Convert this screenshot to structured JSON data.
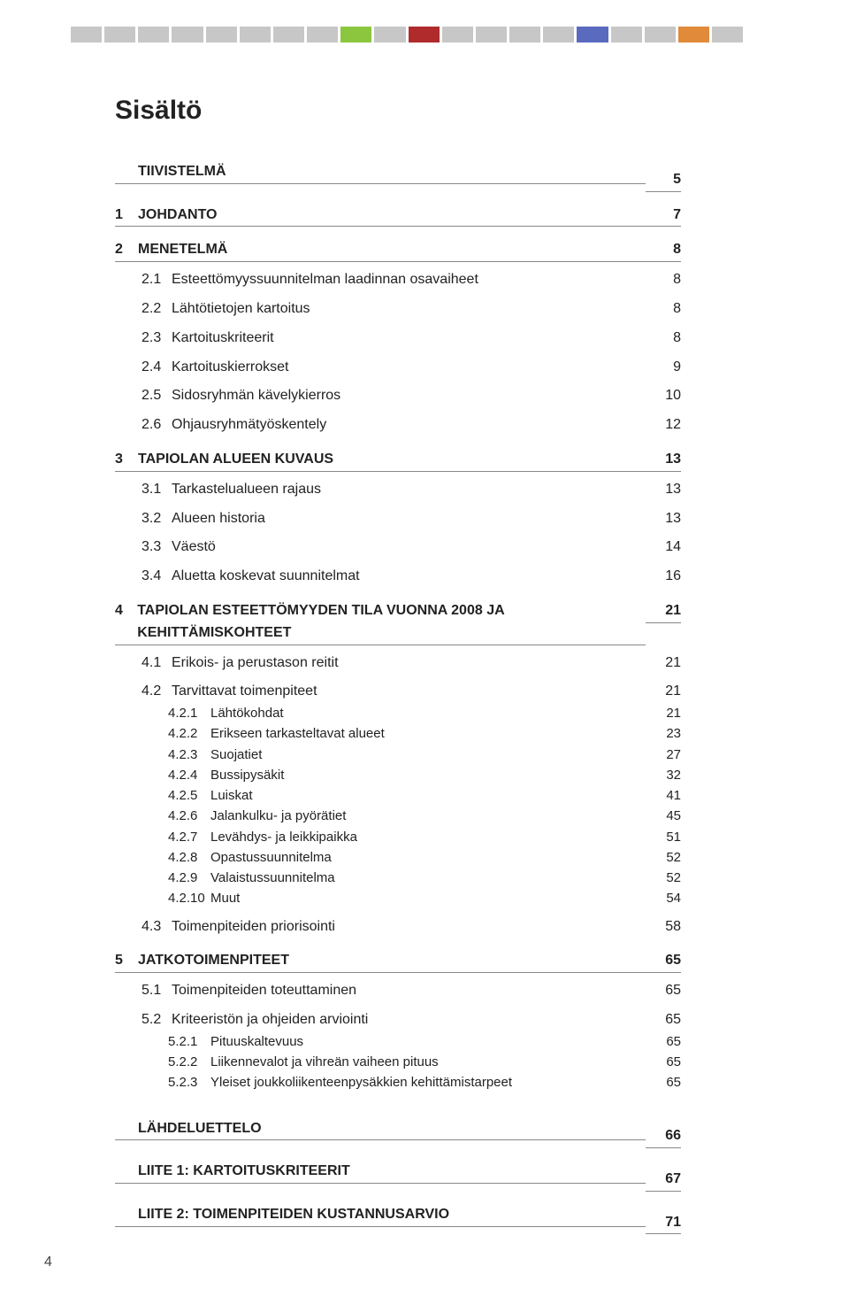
{
  "colorbar": [
    "#c7c7c7",
    "#c7c7c7",
    "#c7c7c7",
    "#c7c7c7",
    "#c7c7c7",
    "#c7c7c7",
    "#c7c7c7",
    "#c7c7c7",
    "#8cc63f",
    "#c7c7c7",
    "#b02b2b",
    "#c7c7c7",
    "#c7c7c7",
    "#c7c7c7",
    "#c7c7c7",
    "#5a6bbf",
    "#c7c7c7",
    "#c7c7c7",
    "#e08a3a",
    "#c7c7c7"
  ],
  "title": "Sisältö",
  "toc": [
    {
      "level": 0,
      "num": "",
      "label": "TIIVISTELMÄ",
      "page": "5"
    },
    {
      "level": 0,
      "num": "1",
      "label": "JOHDANTO",
      "page": "7"
    },
    {
      "level": 0,
      "num": "2",
      "label": "MENETELMÄ",
      "page": "8"
    },
    {
      "level": 1,
      "num": "2.1",
      "label": "Esteettömyyssuunnitelman laadinnan osavaiheet",
      "page": "8"
    },
    {
      "level": 1,
      "num": "2.2",
      "label": "Lähtötietojen kartoitus",
      "page": "8"
    },
    {
      "level": 1,
      "num": "2.3",
      "label": "Kartoituskriteerit",
      "page": "8"
    },
    {
      "level": 1,
      "num": "2.4",
      "label": "Kartoituskierrokset",
      "page": "9"
    },
    {
      "level": 1,
      "num": "2.5",
      "label": "Sidosryhmän kävelykierros",
      "page": "10"
    },
    {
      "level": 1,
      "num": "2.6",
      "label": "Ohjausryhmätyöskentely",
      "page": "12"
    },
    {
      "level": 0,
      "num": "3",
      "label": "TAPIOLAN ALUEEN KUVAUS",
      "page": "13"
    },
    {
      "level": 1,
      "num": "3.1",
      "label": "Tarkastelualueen rajaus",
      "page": "13"
    },
    {
      "level": 1,
      "num": "3.2",
      "label": "Alueen historia",
      "page": "13"
    },
    {
      "level": 1,
      "num": "3.3",
      "label": "Väestö",
      "page": "14"
    },
    {
      "level": 1,
      "num": "3.4",
      "label": "Aluetta koskevat suunnitelmat",
      "page": "16"
    },
    {
      "level": 0,
      "num": "4",
      "label": "TAPIOLAN ESTEETTÖMYYDEN TILA VUONNA 2008 JA KEHITTÄMISKOHTEET",
      "page": "21"
    },
    {
      "level": 1,
      "num": "4.1",
      "label": "Erikois- ja perustason reitit",
      "page": "21"
    },
    {
      "level": 1,
      "num": "4.2",
      "label": "Tarvittavat toimenpiteet",
      "page": "21"
    },
    {
      "level": 2,
      "num": "4.2.1",
      "label": "Lähtökohdat",
      "page": "21"
    },
    {
      "level": 2,
      "num": "4.2.2",
      "label": "Erikseen tarkasteltavat alueet",
      "page": "23"
    },
    {
      "level": 2,
      "num": "4.2.3",
      "label": "Suojatiet",
      "page": "27"
    },
    {
      "level": 2,
      "num": "4.2.4",
      "label": "Bussipysäkit",
      "page": "32"
    },
    {
      "level": 2,
      "num": "4.2.5",
      "label": "Luiskat",
      "page": "41"
    },
    {
      "level": 2,
      "num": "4.2.6",
      "label": "Jalankulku- ja pyörätiet",
      "page": "45"
    },
    {
      "level": 2,
      "num": "4.2.7",
      "label": "Levähdys- ja leikkipaikka",
      "page": "51"
    },
    {
      "level": 2,
      "num": "4.2.8",
      "label": "Opastussuunnitelma",
      "page": "52"
    },
    {
      "level": 2,
      "num": "4.2.9",
      "label": "Valaistussuunnitelma",
      "page": "52"
    },
    {
      "level": 2,
      "num": "4.2.10",
      "label": "Muut",
      "page": "54"
    },
    {
      "level": 1,
      "num": "4.3",
      "label": "Toimenpiteiden priorisointi",
      "page": "58"
    },
    {
      "level": 0,
      "num": "5",
      "label": "JATKOTOIMENPITEET",
      "page": "65"
    },
    {
      "level": 1,
      "num": "5.1",
      "label": "Toimenpiteiden toteuttaminen",
      "page": "65"
    },
    {
      "level": 1,
      "num": "5.2",
      "label": "Kriteeristön ja ohjeiden arviointi",
      "page": "65"
    },
    {
      "level": 2,
      "num": "5.2.1",
      "label": "Pituuskaltevuus",
      "page": "65"
    },
    {
      "level": 2,
      "num": "5.2.2",
      "label": "Liikennevalot ja vihreän vaiheen pituus",
      "page": "65"
    },
    {
      "level": 2,
      "num": "5.2.3",
      "label": "Yleiset joukkoliikenteenpysäkkien kehittämistarpeet",
      "page": "65"
    },
    {
      "level": 0,
      "num": "",
      "label": "LÄHDELUETTELO",
      "page": "66",
      "gap": true
    },
    {
      "level": 0,
      "num": "",
      "label": "LIITE 1: KARTOITUSKRITEERIT",
      "page": "67"
    },
    {
      "level": 0,
      "num": "",
      "label": "LIITE 2: TOIMENPITEIDEN KUSTANNUSARVIO",
      "page": "71"
    }
  ],
  "page_number": "4"
}
